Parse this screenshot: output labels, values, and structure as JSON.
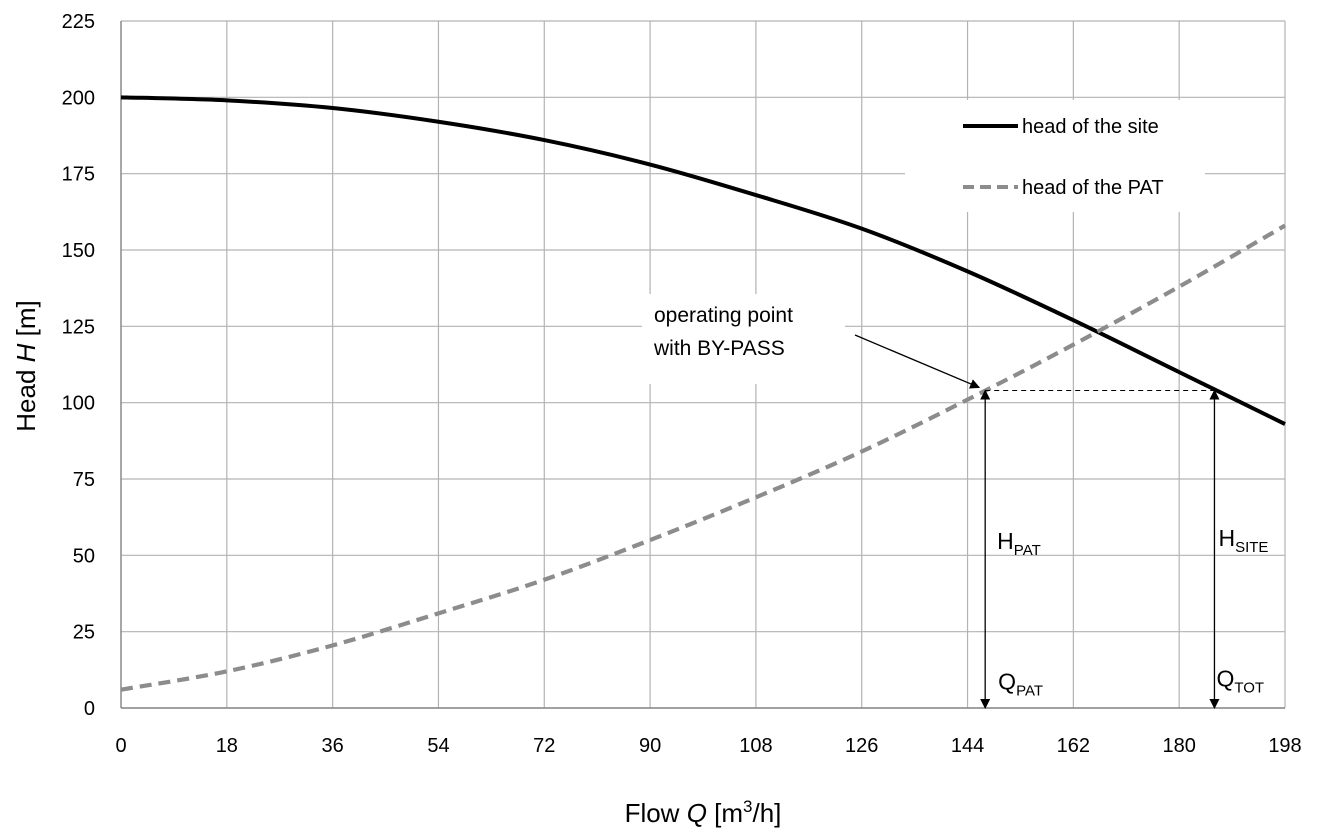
{
  "chart_data": {
    "type": "line",
    "title": "",
    "xlabel": {
      "prefix": "Flow ",
      "var": "Q",
      "unit_pre": " [m",
      "unit_sup": "3",
      "unit_post": "/h]"
    },
    "ylabel": {
      "prefix": "Head ",
      "var": "H",
      "unit": " [m]"
    },
    "xlim": [
      0,
      198
    ],
    "ylim": [
      0,
      225
    ],
    "x_ticks": [
      "0",
      "18",
      "36",
      "54",
      "72",
      "90",
      "108",
      "126",
      "144",
      "162",
      "180",
      "198"
    ],
    "y_ticks": [
      "0",
      "25",
      "50",
      "75",
      "100",
      "125",
      "150",
      "175",
      "200",
      "225"
    ],
    "grid": true,
    "legend_position": "top-right",
    "series": [
      {
        "name": "head of the site",
        "style": "solid",
        "color": "#000000",
        "x": [
          0,
          18,
          36,
          54,
          72,
          90,
          108,
          126,
          144,
          162,
          180,
          198
        ],
        "y": [
          200,
          199,
          196.5,
          192,
          186,
          178,
          168,
          157,
          143,
          127,
          110,
          93
        ]
      },
      {
        "name": "head of the PAT",
        "style": "dashed",
        "color": "#8c8c8c",
        "x": [
          0,
          18,
          36,
          54,
          72,
          90,
          108,
          126,
          144,
          162,
          180,
          198
        ],
        "y": [
          6,
          12,
          20.5,
          31,
          42,
          55,
          69,
          84,
          101,
          119,
          138,
          158
        ]
      }
    ],
    "annotations": {
      "operating_point": {
        "line1": "operating point",
        "line2": "with BY-PASS",
        "x": 147,
        "y": 104
      },
      "site_point": {
        "x": 186,
        "y": 104
      },
      "h_pat": {
        "main": "H",
        "sub": "PAT"
      },
      "h_site": {
        "main": "H",
        "sub": "SITE"
      },
      "q_pat": {
        "main": "Q",
        "sub": "PAT"
      },
      "q_tot": {
        "main": "Q",
        "sub": "TOT"
      }
    }
  }
}
